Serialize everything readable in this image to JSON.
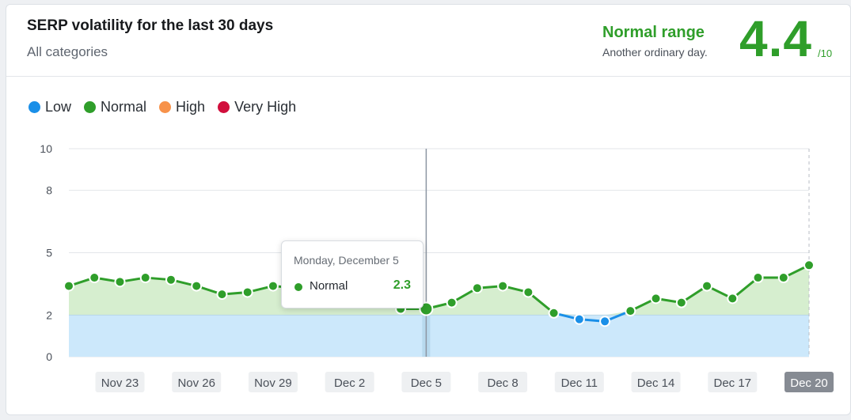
{
  "card": {
    "title": "SERP volatility for the last 30 days",
    "subtitle": "All categories",
    "range_label": "Normal range",
    "range_description": "Another ordinary day.",
    "score": "4.4",
    "score_max": "/10"
  },
  "legend": [
    {
      "label": "Low",
      "color": "#1a8fe8"
    },
    {
      "label": "Normal",
      "color": "#2f9e2a"
    },
    {
      "label": "High",
      "color": "#f7924a"
    },
    {
      "label": "Very High",
      "color": "#d10e3c"
    }
  ],
  "tooltip": {
    "date": "Monday, December 5",
    "series": "Normal",
    "value": "2.3"
  },
  "chart_data": {
    "type": "line",
    "title": "SERP volatility for the last 30 days",
    "x": [
      "Nov 21",
      "Nov 22",
      "Nov 23",
      "Nov 24",
      "Nov 25",
      "Nov 26",
      "Nov 27",
      "Nov 28",
      "Nov 29",
      "Nov 30",
      "Dec 1",
      "Dec 2",
      "Dec 3",
      "Dec 4",
      "Dec 5",
      "Dec 6",
      "Dec 7",
      "Dec 8",
      "Dec 9",
      "Dec 10",
      "Dec 11",
      "Dec 12",
      "Dec 13",
      "Dec 14",
      "Dec 15",
      "Dec 16",
      "Dec 17",
      "Dec 18",
      "Dec 19",
      "Dec 20"
    ],
    "values": [
      3.4,
      3.8,
      3.6,
      3.8,
      3.7,
      3.4,
      3.0,
      3.1,
      3.4,
      3.3,
      3.2,
      3.0,
      2.8,
      2.3,
      2.3,
      2.6,
      3.3,
      3.4,
      3.1,
      2.1,
      1.8,
      1.7,
      2.2,
      2.8,
      2.6,
      3.4,
      2.8,
      3.8,
      3.8,
      4.4
    ],
    "ylim": [
      0,
      10
    ],
    "yticks": [
      0,
      2,
      5,
      8,
      10
    ],
    "xtick_labels": [
      "Nov 23",
      "Nov 26",
      "Nov 29",
      "Dec 2",
      "Dec 5",
      "Dec 8",
      "Dec 11",
      "Dec 14",
      "Dec 17",
      "Dec 20"
    ],
    "bands": [
      {
        "name": "Low",
        "from": 0,
        "to": 2,
        "color": "#cce8fb"
      },
      {
        "name": "Normal",
        "from": 2,
        "to": 5,
        "color": "#d6eecf"
      }
    ],
    "highlighted_index": 14,
    "grid": true,
    "legend_position": "top-left"
  }
}
